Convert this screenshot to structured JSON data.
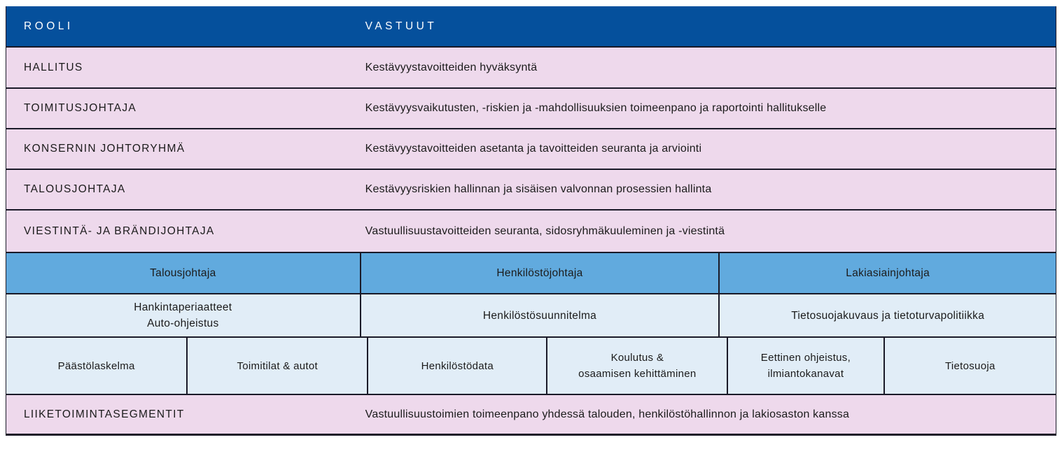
{
  "colors": {
    "header_bg": "#05509C",
    "header_text": "#FFFFFF",
    "pink_row_bg": "#EED9EC",
    "officer_row_bg": "#61AADE",
    "light_blue_bg": "#E1EDF7",
    "border": "#1A1A28",
    "body_text": "#1B1B1B"
  },
  "header": {
    "role_label": "ROOLI",
    "responsibility_label": "VASTUUT"
  },
  "role_rows": [
    {
      "role": "HALLITUS",
      "responsibility": "Kestävyystavoitteiden hyväksyntä"
    },
    {
      "role": "TOIMITUSJOHTAJA",
      "responsibility": "Kestävyysvaikutusten, -riskien ja -mahdollisuuksien toimeenpano ja raportointi hallitukselle"
    },
    {
      "role": "KONSERNIN JOHTORYHMÄ",
      "responsibility": "Kestävyystavoitteiden asetanta ja tavoitteiden seuranta ja arviointi"
    },
    {
      "role": "TALOUSJOHTAJA",
      "responsibility": "Kestävyysriskien hallinnan ja sisäisen valvonnan prosessien hallinta"
    },
    {
      "role": "VIESTINTÄ- JA BRÄNDIJOHTAJA",
      "responsibility": "Vastuullisuustavoitteiden seuranta, sidosryhmäkuuleminen ja -viestintä"
    }
  ],
  "officer_row": {
    "cells": [
      "Talousjohtaja",
      "Henkilöstöjohtaja",
      "Lakiasiainjohtaja"
    ]
  },
  "policy_row": {
    "cells": [
      "Hankintaperiaatteet\nAuto-ohjeistus",
      "Henkilöstösuunnitelma",
      "Tietosuojakuvaus ja tietoturvapolitiikka"
    ]
  },
  "topic_row": {
    "cells": [
      "Päästölaskelma",
      "Toimitilat & autot",
      "Henkilöstödata",
      "Koulutus &\nosaamisen kehittäminen",
      "Eettinen ohjeistus,\nilmiantokanavat",
      "Tietosuoja"
    ]
  },
  "segment_row": {
    "role": "LIIKETOIMINTASEGMENTIT",
    "responsibility": "Vastuullisuustoimien toimeenpano yhdessä  talouden, henkilöstöhallinnon ja lakiosaston kanssa"
  }
}
